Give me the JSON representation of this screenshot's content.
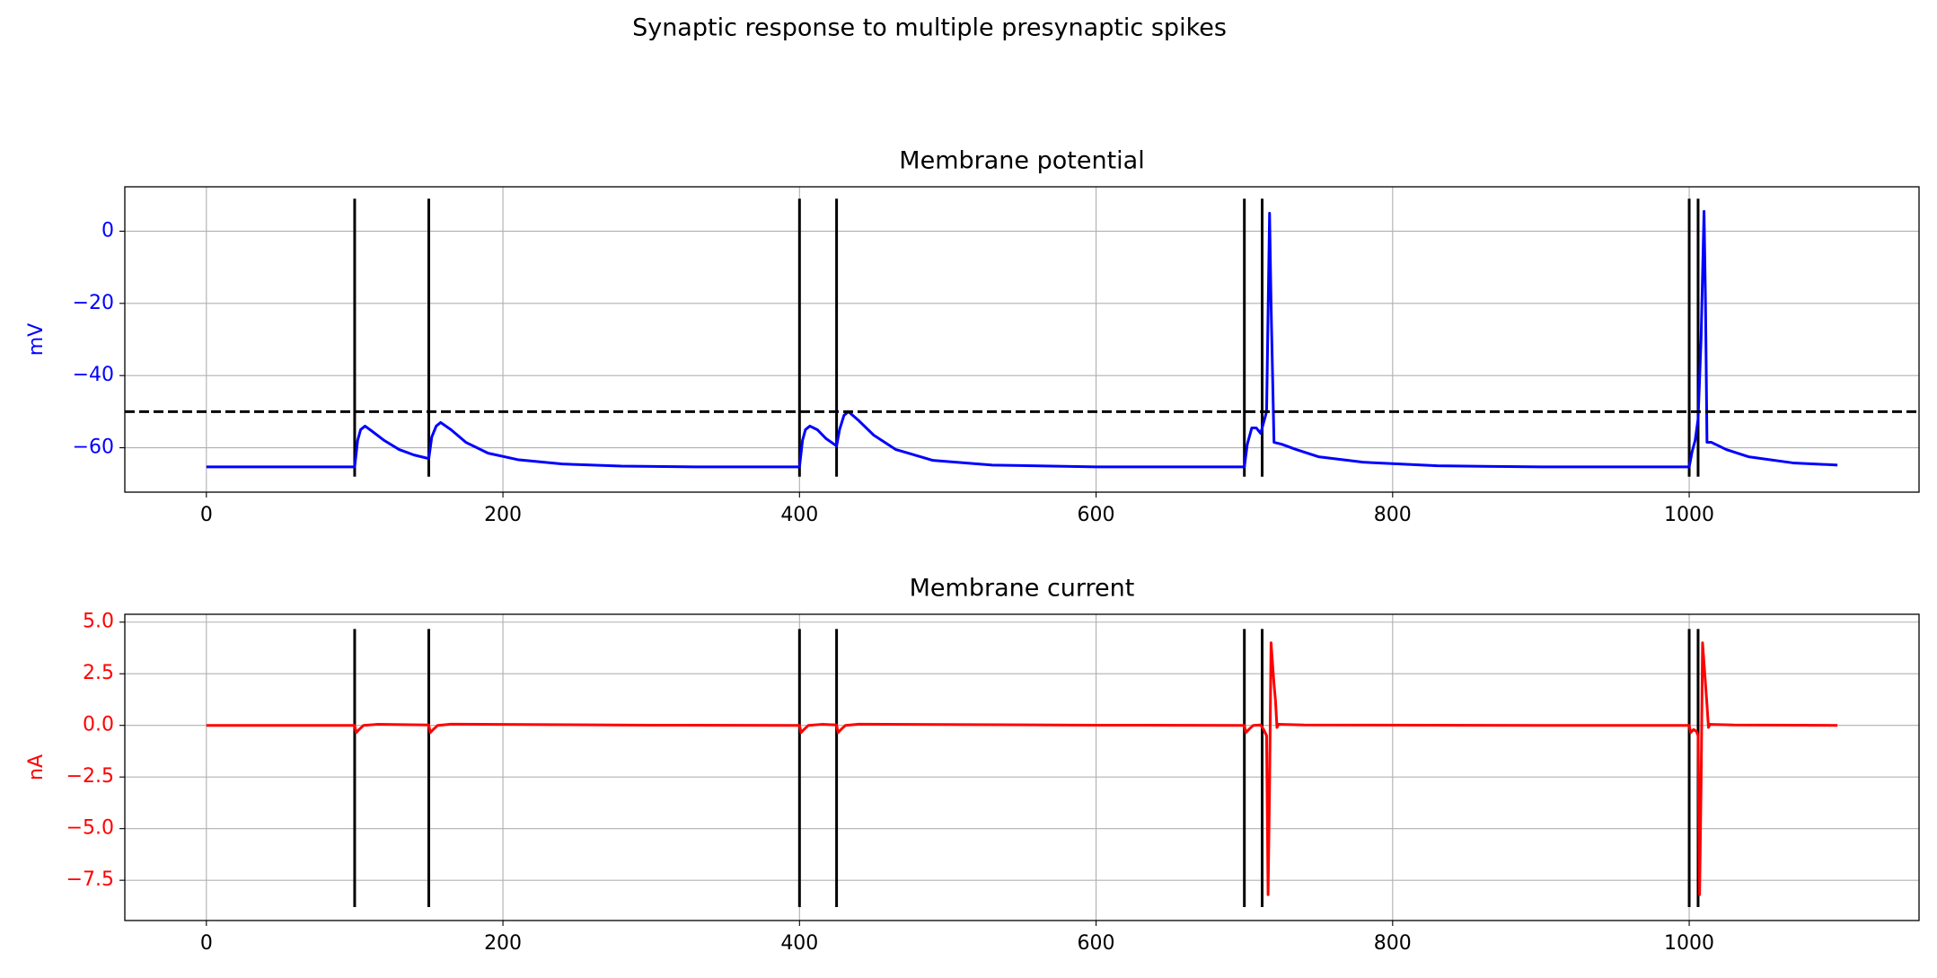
{
  "title": "Synaptic response to multiple presynaptic spikes",
  "chart_data": [
    {
      "type": "line",
      "title": "Membrane potential",
      "ylabel": "mV",
      "x": [
        0,
        100,
        102,
        104,
        107,
        112,
        120,
        130,
        140,
        150,
        152,
        155,
        158,
        165,
        175,
        190,
        210,
        240,
        280,
        330,
        400,
        402,
        404,
        407,
        412,
        418,
        425,
        427,
        430,
        433,
        440,
        450,
        465,
        490,
        530,
        600,
        700,
        702,
        705,
        708,
        711,
        713,
        715,
        717,
        718,
        720,
        725,
        735,
        750,
        780,
        830,
        900,
        1000,
        1002,
        1004,
        1006,
        1008,
        1010,
        1011,
        1012,
        1015,
        1025,
        1040,
        1070,
        1100
      ],
      "series": [
        {
          "color": "#0000ff",
          "values": [
            -65.3,
            -65.3,
            -58,
            -55,
            -54,
            -55.5,
            -58,
            -60.5,
            -62,
            -63,
            -57,
            -54,
            -53,
            -55,
            -58.5,
            -61.5,
            -63.3,
            -64.5,
            -65.1,
            -65.3,
            -65.3,
            -58,
            -55,
            -54,
            -55,
            -57.5,
            -59.5,
            -55,
            -51,
            -50,
            -52.5,
            -56.5,
            -60.5,
            -63.5,
            -64.8,
            -65.3,
            -65.3,
            -59,
            -54.5,
            -54.5,
            -56,
            -53,
            -50,
            5,
            -20,
            -58.5,
            -59,
            -60.5,
            -62.5,
            -64,
            -65,
            -65.3,
            -65.3,
            -61,
            -58,
            -52,
            -30,
            5.5,
            -20,
            -58.5,
            -58.5,
            -60.5,
            -62.5,
            -64.2,
            -64.8
          ]
        }
      ],
      "spikes": {
        "x": [
          100,
          150,
          400,
          425,
          700,
          712,
          1000,
          1006
        ],
        "ymin": -68,
        "ymax": 9,
        "color": "#000000"
      },
      "threshold": {
        "y": -50,
        "color": "#000000",
        "dashed": true
      },
      "xlim": [
        -55,
        1155
      ],
      "ylim": [
        -72.3,
        12.3
      ],
      "xticks": [
        0,
        200,
        400,
        600,
        800,
        1000
      ],
      "yticks": [
        {
          "value": 0,
          "label": "0"
        },
        {
          "value": -20,
          "label": "−20"
        },
        {
          "value": -40,
          "label": "−40"
        },
        {
          "value": -60,
          "label": "−60"
        }
      ],
      "grid": true
    },
    {
      "type": "line",
      "title": "Membrane current",
      "ylabel": "nA",
      "x": [
        0,
        100,
        101,
        103,
        106,
        115,
        150,
        151,
        153,
        156,
        165,
        300,
        400,
        401,
        403,
        406,
        415,
        425,
        426,
        428,
        431,
        440,
        600,
        700,
        701,
        703,
        706,
        711,
        713,
        715,
        716,
        717,
        718,
        719,
        720,
        721,
        722,
        723,
        740,
        900,
        1000,
        1001,
        1003,
        1005,
        1006,
        1007,
        1008,
        1009,
        1010,
        1011,
        1012,
        1013,
        1014,
        1030,
        1100
      ],
      "series": [
        {
          "color": "#ff0000",
          "values": [
            0,
            0,
            -0.35,
            -0.2,
            0,
            0.05,
            0.02,
            -0.35,
            -0.2,
            0,
            0.06,
            0.01,
            0,
            -0.35,
            -0.2,
            0,
            0.05,
            0.02,
            -0.35,
            -0.2,
            0,
            0.06,
            0.01,
            0,
            -0.35,
            -0.2,
            0,
            0.02,
            -0.2,
            -0.5,
            -8.2,
            -3,
            4,
            3,
            2,
            1.2,
            -0.1,
            0.05,
            0.02,
            0,
            0,
            -0.35,
            -0.2,
            -0.3,
            -0.5,
            -8.2,
            -3,
            4,
            3,
            2,
            1,
            -0.1,
            0.05,
            0.02,
            0
          ]
        }
      ],
      "spikes": {
        "x": [
          100,
          150,
          400,
          425,
          700,
          712,
          1000,
          1006
        ],
        "ymin": -8.8,
        "ymax": 4.67,
        "color": "#000000"
      },
      "xlim": [
        -55,
        1155
      ],
      "ylim": [
        -9.45,
        5.38
      ],
      "xticks": [
        0,
        200,
        400,
        600,
        800,
        1000
      ],
      "yticks": [
        {
          "value": 5,
          "label": "5.0"
        },
        2.5,
        {
          "value": 0,
          "label": "0.0"
        },
        {
          "value": -2.5,
          "label": "−2.5"
        },
        {
          "value": -5,
          "label": "−5.0"
        },
        {
          "value": -7.5,
          "label": "−7.5"
        }
      ],
      "grid": true
    }
  ]
}
